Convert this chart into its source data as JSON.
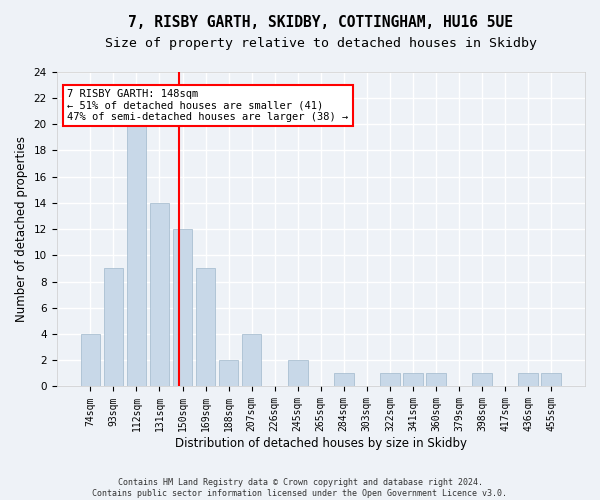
{
  "title1": "7, RISBY GARTH, SKIDBY, COTTINGHAM, HU16 5UE",
  "title2": "Size of property relative to detached houses in Skidby",
  "xlabel": "Distribution of detached houses by size in Skidby",
  "ylabel": "Number of detached properties",
  "categories": [
    "74sqm",
    "93sqm",
    "112sqm",
    "131sqm",
    "150sqm",
    "169sqm",
    "188sqm",
    "207sqm",
    "226sqm",
    "245sqm",
    "265sqm",
    "284sqm",
    "303sqm",
    "322sqm",
    "341sqm",
    "360sqm",
    "379sqm",
    "398sqm",
    "417sqm",
    "436sqm",
    "455sqm"
  ],
  "values": [
    4,
    9,
    20,
    14,
    12,
    9,
    2,
    4,
    0,
    2,
    0,
    1,
    0,
    1,
    1,
    1,
    0,
    1,
    0,
    1,
    1
  ],
  "bar_color": "#c8d8e8",
  "bar_edge_color": "#a0b8cc",
  "vline_color": "red",
  "annotation_text": "7 RISBY GARTH: 148sqm\n← 51% of detached houses are smaller (41)\n47% of semi-detached houses are larger (38) →",
  "annotation_box_color": "white",
  "annotation_box_edge": "red",
  "ylim": [
    0,
    24
  ],
  "yticks": [
    0,
    2,
    4,
    6,
    8,
    10,
    12,
    14,
    16,
    18,
    20,
    22,
    24
  ],
  "footnote": "Contains HM Land Registry data © Crown copyright and database right 2024.\nContains public sector information licensed under the Open Government Licence v3.0.",
  "bg_color": "#eef2f7",
  "grid_color": "#ffffff",
  "title_fontsize": 10.5,
  "subtitle_fontsize": 9.5,
  "tick_fontsize": 7,
  "ylabel_fontsize": 8.5,
  "xlabel_fontsize": 8.5,
  "footnote_fontsize": 6
}
